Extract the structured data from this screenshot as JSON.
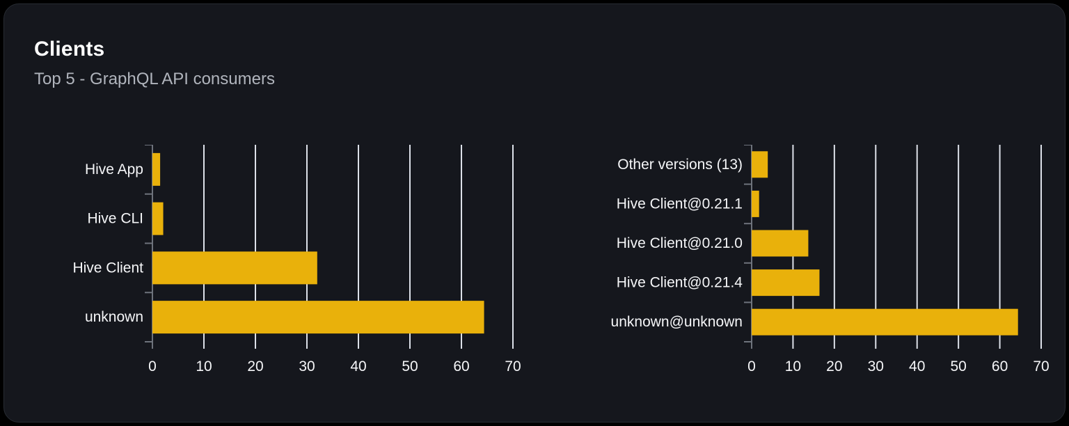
{
  "card": {
    "title": "Clients",
    "subtitle": "Top 5 - GraphQL API consumers"
  },
  "colors": {
    "card_background": "#15171d",
    "card_border": "#272b32",
    "bar": "#e9b10b",
    "grid_line": "#dde1e9",
    "axis_line": "#6e737c",
    "label_text": "#f5f6f8",
    "subtitle_text": "#b0b4bc"
  },
  "chart_data": [
    {
      "type": "bar",
      "orientation": "horizontal",
      "name": "clients-chart",
      "categories": [
        "Hive App",
        "Hive CLI",
        "Hive Client",
        "unknown"
      ],
      "values": [
        1.5,
        2.1,
        32,
        64.4
      ],
      "xlim": [
        0,
        70
      ],
      "xticks": [
        0,
        10,
        20,
        30,
        40,
        50,
        60,
        70
      ],
      "grid": "vertical",
      "legend": "none"
    },
    {
      "type": "bar",
      "orientation": "horizontal",
      "name": "client-versions-chart",
      "categories": [
        "Other versions (13)",
        "Hive Client@0.21.1",
        "Hive Client@0.21.0",
        "Hive Client@0.21.4",
        "unknown@unknown"
      ],
      "values": [
        3.9,
        1.8,
        13.7,
        16.4,
        64.4
      ],
      "xlim": [
        0,
        70
      ],
      "xticks": [
        0,
        10,
        20,
        30,
        40,
        50,
        60,
        70
      ],
      "grid": "vertical",
      "legend": "none"
    }
  ]
}
